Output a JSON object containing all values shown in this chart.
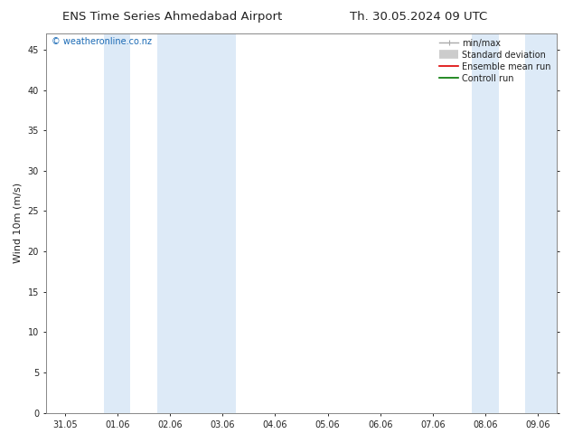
{
  "title_left": "ENS Time Series Ahmedabad Airport",
  "title_right": "Th. 30.05.2024 09 UTC",
  "ylabel": "Wind 10m (m/s)",
  "watermark": "© weatheronline.co.nz",
  "x_tick_labels": [
    "31.05",
    "01.06",
    "02.06",
    "03.06",
    "04.06",
    "05.06",
    "06.06",
    "07.06",
    "08.06",
    "09.06"
  ],
  "x_tick_positions": [
    0,
    1,
    2,
    3,
    4,
    5,
    6,
    7,
    8,
    9
  ],
  "ylim": [
    0,
    47
  ],
  "xlim": [
    -0.35,
    9.35
  ],
  "yticks": [
    0,
    5,
    10,
    15,
    20,
    25,
    30,
    35,
    40,
    45
  ],
  "background_color": "#ffffff",
  "plot_bg_color": "#ffffff",
  "shaded_bands": [
    {
      "xmin": 0.75,
      "xmax": 1.25,
      "color": "#ddeaf7"
    },
    {
      "xmin": 1.75,
      "xmax": 3.25,
      "color": "#ddeaf7"
    },
    {
      "xmin": 7.75,
      "xmax": 8.25,
      "color": "#ddeaf7"
    },
    {
      "xmin": 8.75,
      "xmax": 9.35,
      "color": "#ddeaf7"
    }
  ],
  "title_fontsize": 9.5,
  "tick_label_fontsize": 7,
  "ylabel_fontsize": 8,
  "watermark_color": "#1a6ab5",
  "watermark_fontsize": 7,
  "spine_color": "#888888",
  "font_color": "#222222",
  "legend_fontsize": 7
}
